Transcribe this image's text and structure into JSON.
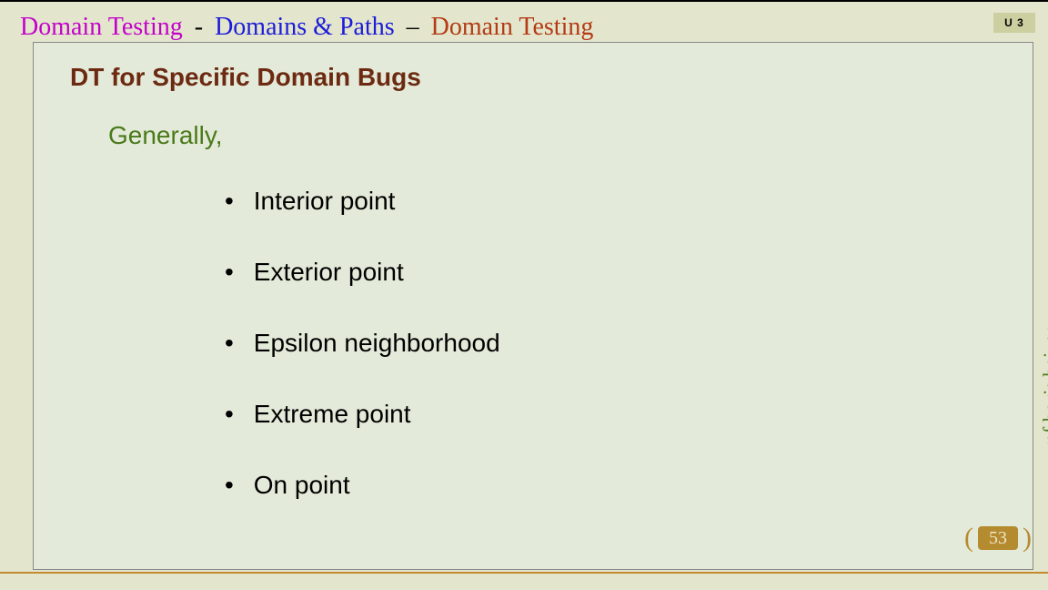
{
  "header": {
    "part1": {
      "text": "Domain Testing",
      "color": "#c302c9"
    },
    "dash1": "-",
    "part2": {
      "text": "Domains & Paths",
      "color": "#1c1cd8"
    },
    "dash2": {
      "text": "–",
      "color": "#000000"
    },
    "part3": {
      "text": "Domain Testing",
      "color": "#b43a14"
    }
  },
  "unit": "U 3",
  "content": {
    "section_heading": {
      "text": "DT for Specific Domain Bugs",
      "color": "#6c2a12"
    },
    "subheading": {
      "text": "Generally,",
      "color": "#4a7a1a"
    },
    "bullets": [
      "Interior point",
      "Exterior point",
      "Epsilon neighborhood",
      "Extreme point",
      "On point"
    ]
  },
  "vertical_ref": {
    "text": "ref boris beizer",
    "color": "#4a7a1a"
  },
  "page": {
    "number": "53",
    "pill_bg": "#b58b2f",
    "bracket_color": "#b58b2f",
    "text_color": "#f0e5c8"
  },
  "colors": {
    "slide_bg": "#e3e6cd",
    "content_bg": "#e4ead9",
    "content_border": "#888888",
    "unit_bg": "#ccd0a1",
    "bottom_line": "#c38a2f"
  }
}
